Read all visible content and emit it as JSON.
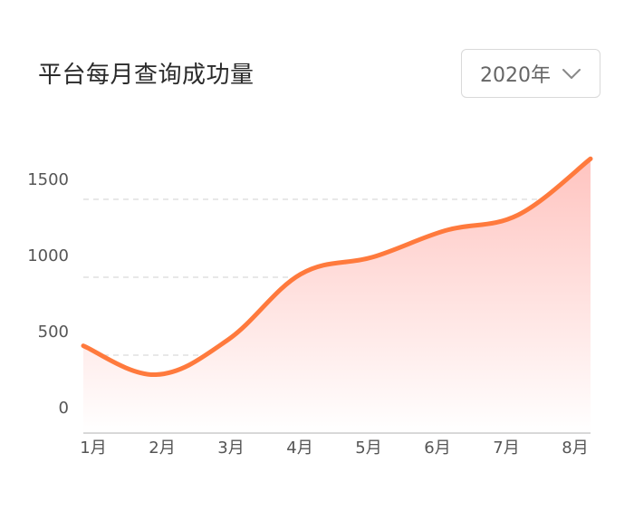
{
  "header": {
    "title": "平台每月查询成功量"
  },
  "year_select": {
    "selected": "2020年",
    "icon": "chevron-down-icon"
  },
  "colors": {
    "line": "#ff7a3d",
    "area_top": "#ffc4c0",
    "area_bottom": "#ffffff",
    "grid": "#d9d9d9",
    "axis": "#cccccc"
  },
  "chart_data": {
    "type": "area",
    "title": "平台每月查询成功量",
    "categories": [
      "1月",
      "2月",
      "3月",
      "4月",
      "5月",
      "6月",
      "7月",
      "8月"
    ],
    "series": [
      {
        "values": [
          560,
          375,
          600,
          1020,
          1130,
          1300,
          1400,
          1760
        ]
      }
    ],
    "y_ticks": [
      "0",
      "500",
      "1000",
      "1500"
    ],
    "y_tick_values": [
      0,
      500,
      1000,
      1500
    ],
    "ylim": [
      0,
      1500
    ],
    "grid": true,
    "legend": "none",
    "smooth": true
  }
}
